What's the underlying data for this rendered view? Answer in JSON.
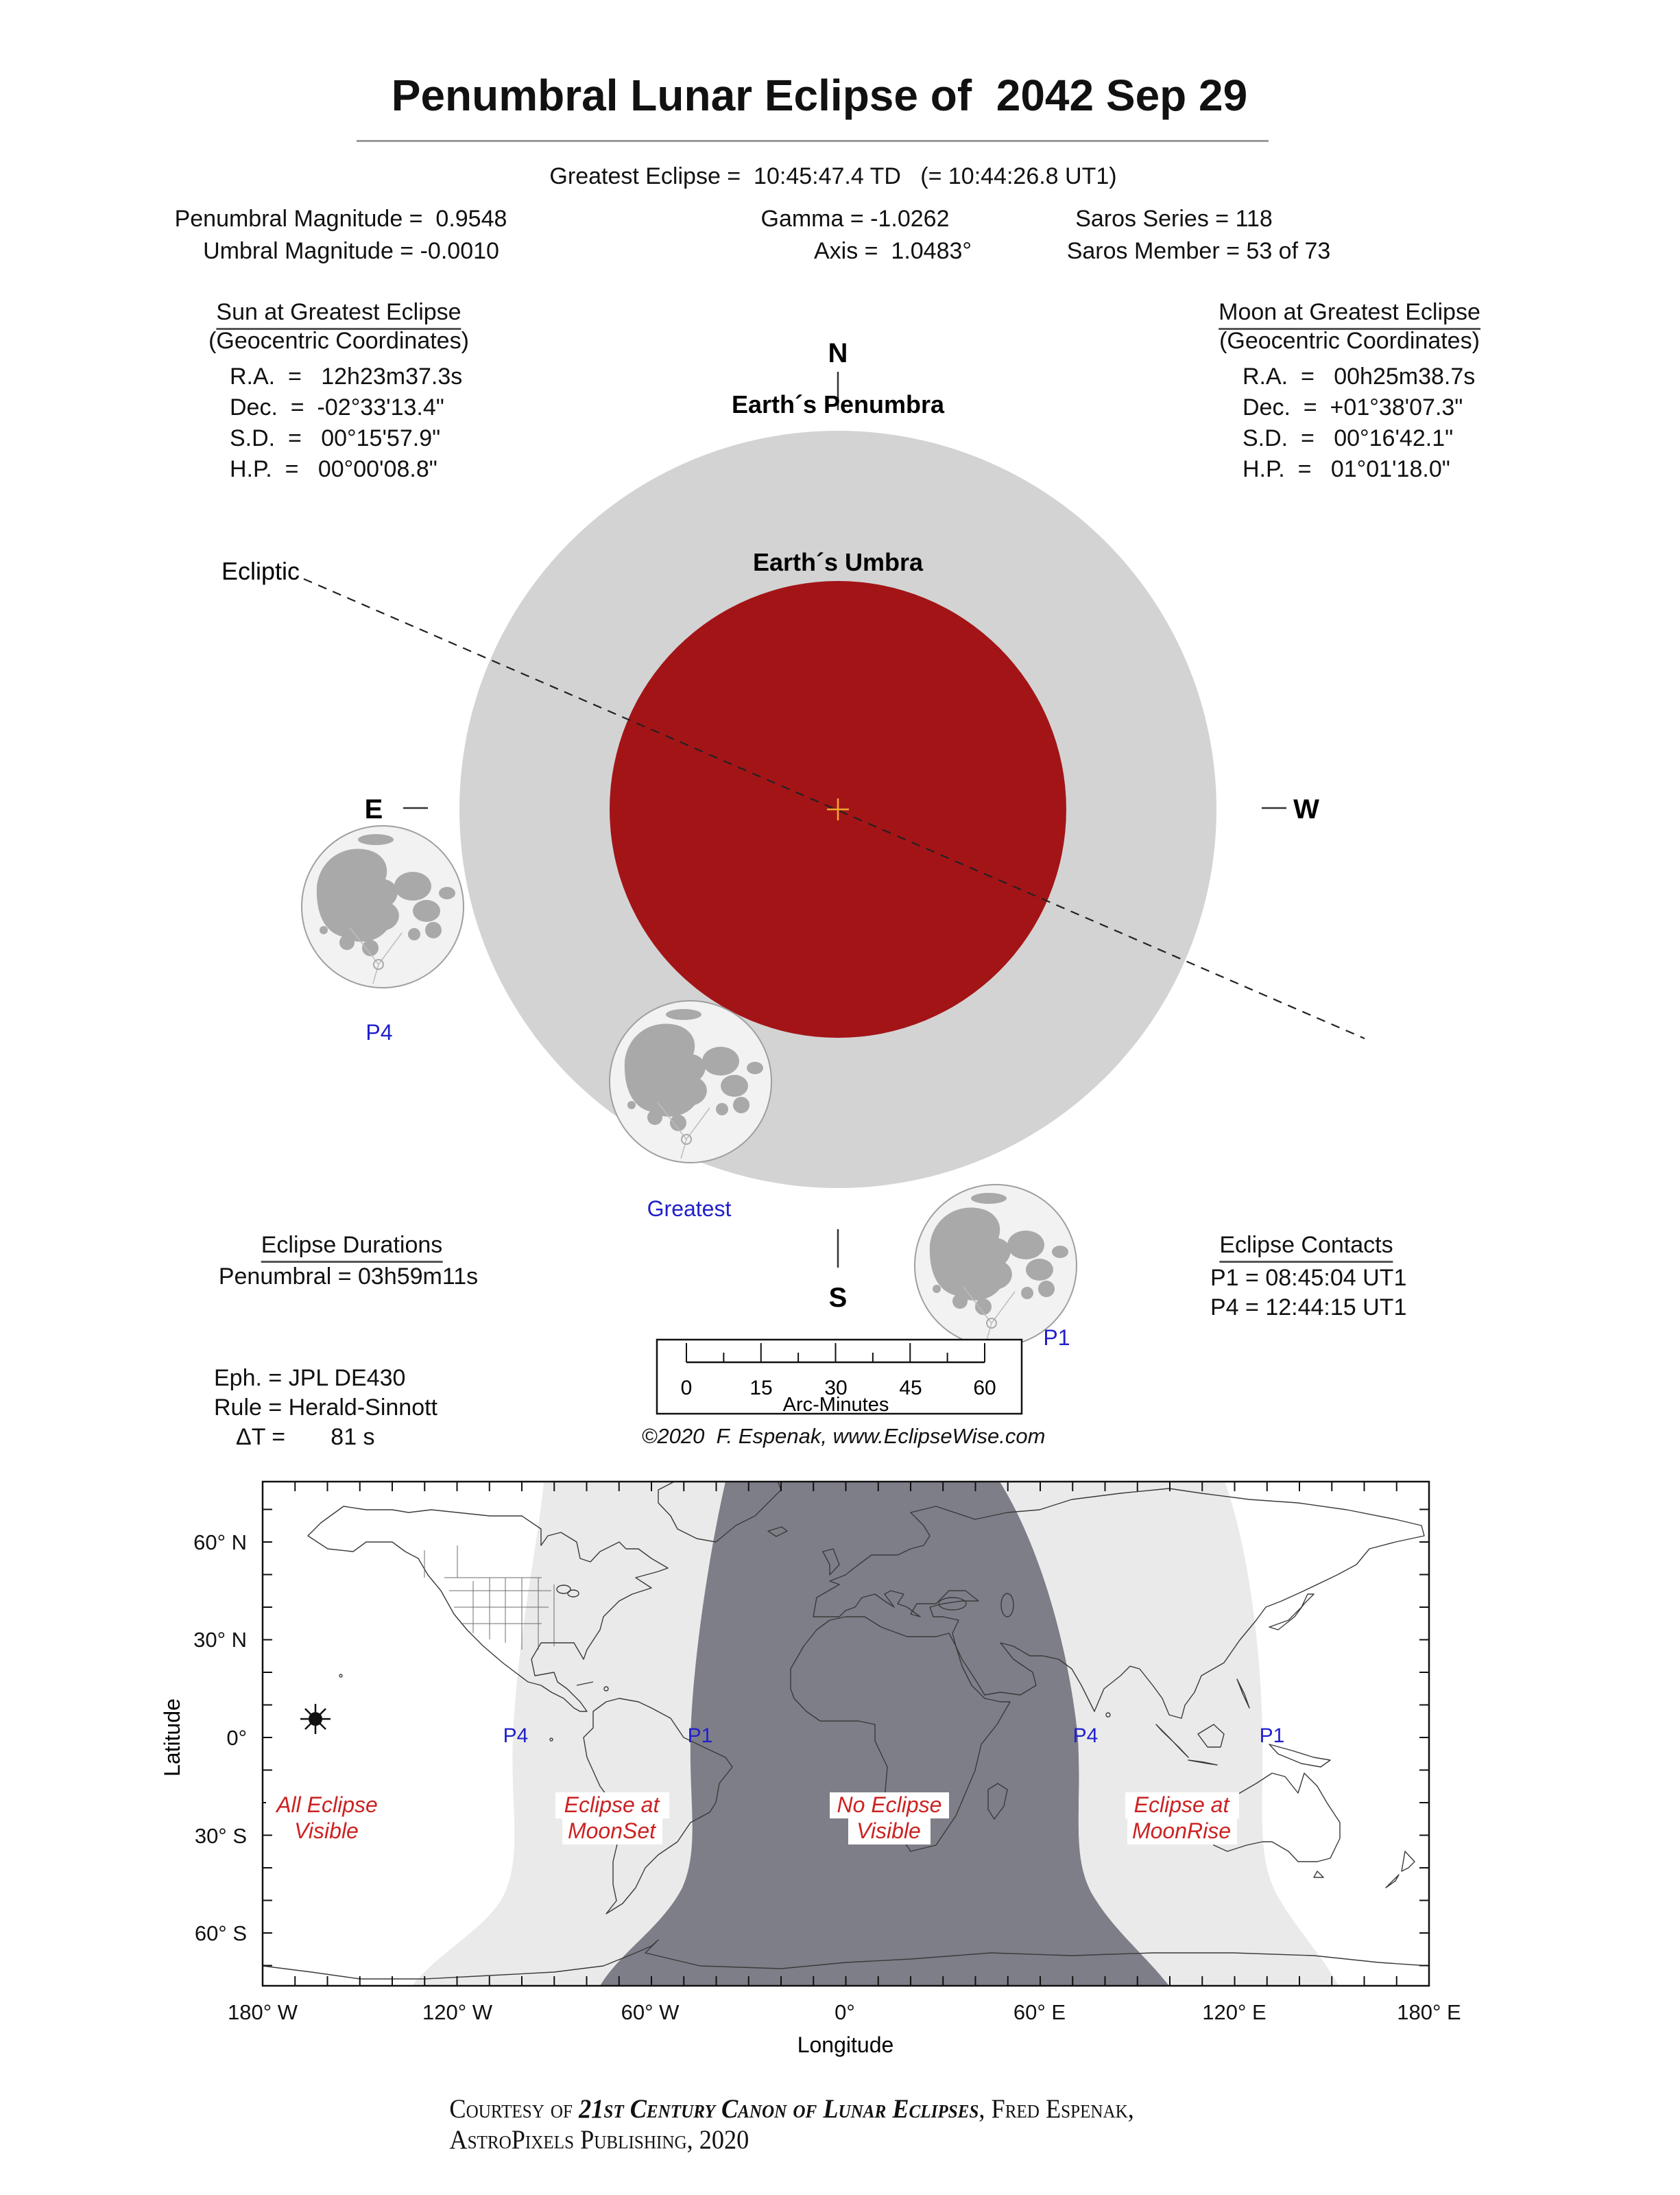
{
  "title": "Penumbral Lunar Eclipse of  2042 Sep 29",
  "header": {
    "greatest_eclipse": "Greatest Eclipse =  10:45:47.4 TD   (= 10:44:26.8 UT1)",
    "penumbral_magnitude": "Penumbral Magnitude =  0.9548",
    "umbral_magnitude": "Umbral Magnitude = -0.0010",
    "gamma": "Gamma = -1.0262",
    "axis": "Axis =  1.0483°",
    "saros_series": "Saros Series = 118",
    "saros_member": "Saros Member = 53 of 73"
  },
  "sun_block": {
    "heading": "Sun at Greatest Eclipse",
    "subheading": "(Geocentric Coordinates)",
    "rows": [
      "R.A.  =   12h23m37.3s",
      "Dec.  =  -02°33'13.4\"",
      "S.D.  =   00°15'57.9\"",
      "H.P.  =   00°00'08.8\""
    ]
  },
  "moon_block": {
    "heading": "Moon at Greatest Eclipse",
    "subheading": "(Geocentric Coordinates)",
    "rows": [
      "R.A.  =   00h25m38.7s",
      "Dec.  =  +01°38'07.3\"",
      "S.D.  =   00°16'42.1\"",
      "H.P.  =   01°01'18.0\""
    ]
  },
  "diagram": {
    "north": "N",
    "south": "S",
    "east": "E",
    "west": "W",
    "penumbra_label": "Earth´s Penumbra",
    "umbra_label": "Earth´s Umbra",
    "ecliptic_label": "Ecliptic",
    "p4_label": "P4",
    "greatest_label": "Greatest",
    "p1_label": "P1",
    "scale_ticks": [
      "0",
      "15",
      "30",
      "45",
      "60"
    ],
    "scale_caption": "Arc-Minutes",
    "copyright": "©2020  F. Espenak, www.EclipseWise.com",
    "colors": {
      "penumbra": "#d3d3d3",
      "umbra": "#a31417",
      "cross": "#f0a830",
      "blue": "#2020cc"
    }
  },
  "durations": {
    "heading": "Eclipse Durations",
    "penumbral": "Penumbral = 03h59m11s"
  },
  "contacts": {
    "heading": "Eclipse Contacts",
    "p1": "P1 = 08:45:04 UT1",
    "p4": "P4 = 12:44:15 UT1"
  },
  "ephemeris": {
    "eph": "Eph. = JPL DE430",
    "rule": "Rule = Herald-Sinnott",
    "delta_t": "ΔT =       81 s"
  },
  "map": {
    "xlabel": "Longitude",
    "ylabel": "Latitude",
    "lon_ticks": [
      "180° W",
      "120° W",
      "60° W",
      "0°",
      "60° E",
      "120° E",
      "180° E"
    ],
    "lat_ticks": [
      "60° N",
      "30° N",
      "0°",
      "30° S",
      "60° S"
    ],
    "labels": {
      "all_visible_1": "All Eclipse",
      "all_visible_2": "Visible",
      "moonset_1": "Eclipse at",
      "moonset_2": "MoonSet",
      "none_1": "No Eclipse",
      "none_2": "Visible",
      "moonrise_1": "Eclipse at",
      "moonrise_2": "MoonRise",
      "p4": "P4",
      "p1": "P1"
    },
    "colors": {
      "night": "#7e7e88",
      "partial": "#eaeaea",
      "red": "#cc2222"
    }
  },
  "footer": {
    "prefix": "Courtesy of ",
    "book": "21st Century Canon of Lunar Eclipses",
    "suffix": ", Fred Espenak, AstroPixels Publishing, 2020"
  }
}
